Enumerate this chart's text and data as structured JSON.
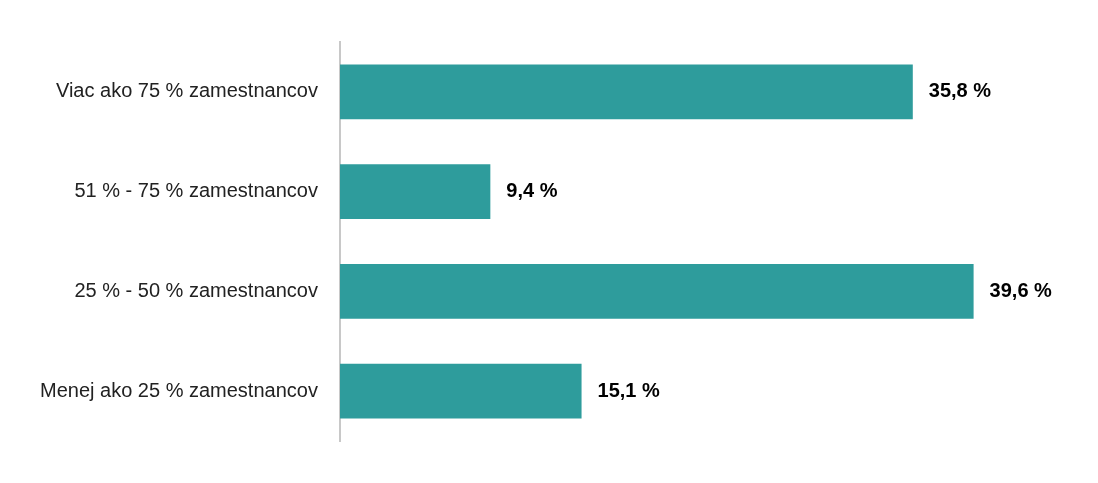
{
  "chart_data": {
    "type": "bar",
    "orientation": "horizontal",
    "categories": [
      "Viac ako 75 % zamestnancov",
      "51 % - 75 % zamestnancov",
      "25 % - 50 % zamestnancov",
      "Menej ako 25 % zamestnancov"
    ],
    "values": [
      35.8,
      9.4,
      39.6,
      15.1
    ],
    "value_labels": [
      "35,8 %",
      "9,4 %",
      "39,6 %",
      "15,1 %"
    ],
    "color": "#2e9c9c",
    "grid": false,
    "legend": false
  }
}
